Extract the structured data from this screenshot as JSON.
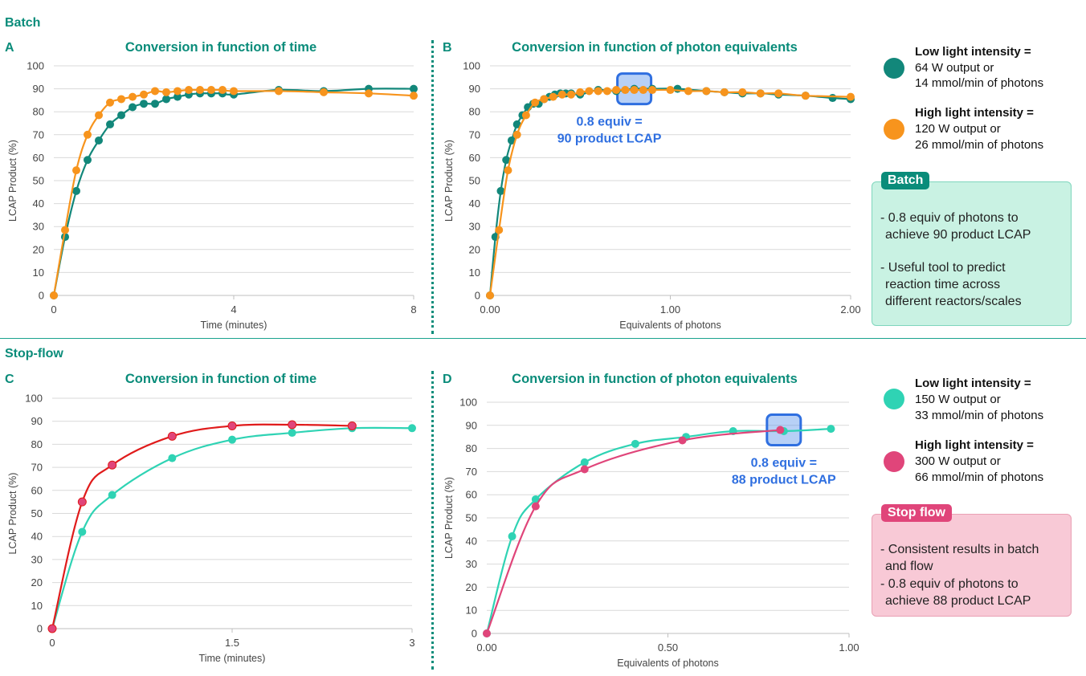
{
  "sections": {
    "batch": "Batch",
    "stopflow": "Stop-flow"
  },
  "colors": {
    "teal": "#0a8c7a",
    "batch_low": "#12877a",
    "batch_high": "#f7941d",
    "sf_low": "#2fd3b4",
    "sf_high_C": "#e01b1b",
    "sf_high_D": "#e0457a",
    "sf_high_marker": "#e0457a",
    "highlight": "#2f6fe0"
  },
  "legend_batch": {
    "low_title": "Low light intensity =",
    "low_line1": "64 W output or",
    "low_line2": "14 mmol/min of photons",
    "high_title": "High light intensity =",
    "high_line1": "120 W output or",
    "high_line2": "26 mmol/min of photons"
  },
  "legend_stopflow": {
    "low_title": "Low light intensity =",
    "low_line1": "150 W output or",
    "low_line2": "33 mmol/min of photons",
    "high_title": "High light intensity =",
    "high_line1": "300 W output or",
    "high_line2": "66 mmol/min of photons"
  },
  "batch_box": {
    "tag": "Batch",
    "line1": "- 0.8 equiv of photons to",
    "line2": "achieve 90 product LCAP",
    "line3": "- Useful tool to predict",
    "line4": "reaction time across",
    "line5": "different reactors/scales"
  },
  "stopflow_box": {
    "tag": "Stop flow",
    "line1": "- Consistent results in batch",
    "line2": "and flow",
    "line3": "- 0.8 equiv of photons to",
    "line4": "achieve 88 product LCAP"
  },
  "chart_data": [
    {
      "id": "A",
      "panel_label": "A",
      "type": "line",
      "title": "Conversion in function of time",
      "xlabel": "Time (minutes)",
      "ylabel": "LCAP Product (%)",
      "xlim": [
        0,
        8
      ],
      "ylim": [
        0,
        100
      ],
      "xticks": [
        "0",
        "4",
        "8"
      ],
      "xtick_values": [
        0,
        4,
        8
      ],
      "yticks": [
        "0",
        "10",
        "20",
        "30",
        "40",
        "50",
        "60",
        "70",
        "80",
        "90",
        "100"
      ],
      "grid": true,
      "series": [
        {
          "name": "Low light intensity (64 W)",
          "color": "#12877a",
          "x": [
            0,
            0.25,
            0.5,
            0.75,
            1,
            1.25,
            1.5,
            1.75,
            2,
            2.25,
            2.5,
            2.75,
            3,
            3.25,
            3.5,
            3.75,
            4,
            5,
            6,
            7,
            8
          ],
          "y": [
            0,
            25.5,
            45.5,
            59,
            67.5,
            74.5,
            78.5,
            82,
            83.5,
            83.5,
            85.5,
            86.5,
            87.5,
            88,
            88,
            88,
            87.5,
            89.5,
            89,
            90,
            90
          ]
        },
        {
          "name": "High light intensity (120 W)",
          "color": "#f7941d",
          "x": [
            0,
            0.25,
            0.5,
            0.75,
            1,
            1.25,
            1.5,
            1.75,
            2,
            2.25,
            2.5,
            2.75,
            3,
            3.25,
            3.5,
            3.75,
            4,
            5,
            6,
            7,
            8
          ],
          "y": [
            0,
            28.5,
            54.5,
            70,
            78.5,
            84,
            85.5,
            86.5,
            87.5,
            89,
            88.5,
            89,
            89.5,
            89.5,
            89.5,
            89.5,
            89,
            89,
            88.5,
            88,
            87
          ]
        }
      ]
    },
    {
      "id": "B",
      "panel_label": "B",
      "type": "line",
      "title": "Conversion in function of photon equivalents",
      "xlabel": "Equivalents of photons",
      "ylabel": "LCAP Product (%)",
      "xlim": [
        0,
        2
      ],
      "ylim": [
        0,
        100
      ],
      "xticks": [
        "0.00",
        "1.00",
        "2.00"
      ],
      "xtick_values": [
        0,
        1,
        2
      ],
      "yticks": [
        "0",
        "10",
        "20",
        "30",
        "40",
        "50",
        "60",
        "70",
        "80",
        "90",
        "100"
      ],
      "grid": true,
      "annotation": {
        "line1": "0.8 equiv =",
        "line2": "90 product LCAP",
        "x": 0.8,
        "y": 90
      },
      "series": [
        {
          "name": "Low light intensity (64 W)",
          "color": "#12877a",
          "x": [
            0,
            0.03,
            0.06,
            0.09,
            0.12,
            0.15,
            0.18,
            0.21,
            0.24,
            0.27,
            0.3,
            0.33,
            0.36,
            0.39,
            0.42,
            0.45,
            0.5,
            0.6,
            0.7,
            0.8,
            0.9,
            1.04,
            1.2,
            1.3,
            1.4,
            1.5,
            1.6,
            1.75,
            1.9,
            2.0
          ],
          "y": [
            0,
            25.5,
            45.5,
            59,
            67.5,
            74.5,
            78.5,
            82,
            83.5,
            83.5,
            85.5,
            86.5,
            87.5,
            88,
            88,
            88,
            87.5,
            89.5,
            89,
            90,
            90,
            90,
            89,
            88.5,
            88,
            88,
            87.5,
            87,
            86,
            85.5
          ]
        },
        {
          "name": "High light intensity (120 W)",
          "color": "#f7941d",
          "x": [
            0,
            0.05,
            0.1,
            0.15,
            0.2,
            0.25,
            0.3,
            0.35,
            0.4,
            0.45,
            0.5,
            0.55,
            0.6,
            0.65,
            0.7,
            0.75,
            0.8,
            0.85,
            0.9,
            1.0,
            1.1,
            1.2,
            1.3,
            1.4,
            1.5,
            1.6,
            1.75,
            2.0
          ],
          "y": [
            0,
            28.5,
            54.5,
            70,
            78.5,
            84,
            85.5,
            86.5,
            87.5,
            87.5,
            88.5,
            89,
            89,
            89,
            89.5,
            89.5,
            89.5,
            89.5,
            89.5,
            89.5,
            89,
            89,
            88.5,
            88.5,
            88,
            88,
            87,
            86.5
          ]
        }
      ]
    },
    {
      "id": "C",
      "panel_label": "C",
      "type": "line",
      "title": "Conversion in function of time",
      "xlabel": "Time (minutes)",
      "ylabel": "LCAP Product (%)",
      "xlim": [
        0,
        3
      ],
      "ylim": [
        0,
        100
      ],
      "xticks": [
        "0",
        "1.5",
        "3"
      ],
      "xtick_values": [
        0,
        1.5,
        3
      ],
      "yticks": [
        "0",
        "10",
        "20",
        "30",
        "40",
        "50",
        "60",
        "70",
        "80",
        "90",
        "100"
      ],
      "grid": true,
      "series": [
        {
          "name": "Low light intensity (150 W)",
          "color": "#2fd3b4",
          "x": [
            0,
            0.25,
            0.5,
            1,
            1.5,
            2,
            2.5,
            3
          ],
          "y": [
            0,
            42,
            58,
            74,
            82,
            85,
            87,
            87
          ]
        },
        {
          "name": "High light intensity (300 W)",
          "color": "#e01b1b",
          "marker_color": "#e0457a",
          "x": [
            0,
            0.25,
            0.5,
            1,
            1.5,
            2,
            2.5
          ],
          "y": [
            0,
            55,
            71,
            83.5,
            88,
            88.5,
            88
          ]
        }
      ]
    },
    {
      "id": "D",
      "panel_label": "D",
      "type": "line",
      "title": "Conversion in function of photon equivalents",
      "xlabel": "Equivalents of photons",
      "ylabel": "LCAP Product (%)",
      "xlim": [
        0,
        1
      ],
      "ylim": [
        0,
        100
      ],
      "xticks": [
        "0.00",
        "0.50",
        "1.00"
      ],
      "xtick_values": [
        0,
        0.5,
        1
      ],
      "yticks": [
        "0",
        "10",
        "20",
        "30",
        "40",
        "50",
        "60",
        "70",
        "80",
        "90",
        "100"
      ],
      "grid": true,
      "annotation": {
        "line1": "0.8 equiv =",
        "line2": "88 product LCAP",
        "x": 0.82,
        "y": 88
      },
      "series": [
        {
          "name": "Low light intensity (150 W)",
          "color": "#2fd3b4",
          "x": [
            0,
            0.07,
            0.135,
            0.27,
            0.41,
            0.55,
            0.68,
            0.82,
            0.95
          ],
          "y": [
            0,
            42,
            58,
            74,
            82,
            85,
            87.5,
            87.5,
            88.5
          ]
        },
        {
          "name": "High light intensity (300 W)",
          "color": "#e0457a",
          "x": [
            0,
            0.135,
            0.27,
            0.54,
            0.81
          ],
          "y": [
            0,
            55,
            71,
            83.5,
            88
          ]
        }
      ]
    }
  ]
}
